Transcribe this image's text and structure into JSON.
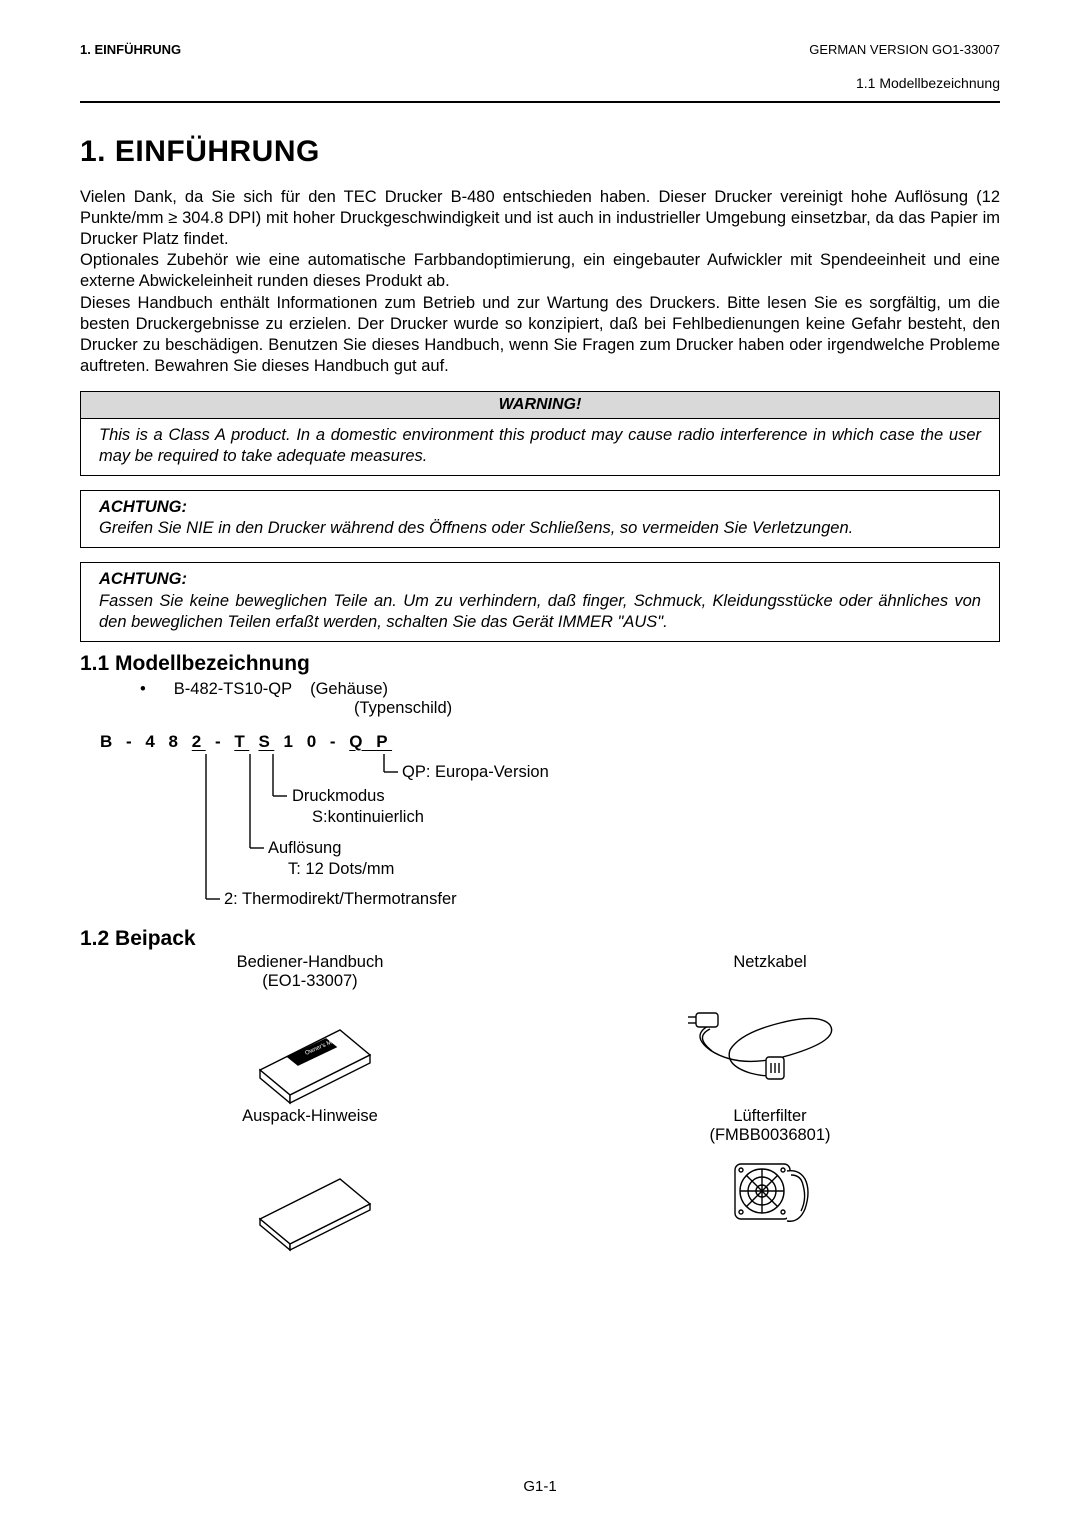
{
  "header": {
    "left": "1.   EINFÜHRUNG",
    "right": "GERMAN VERSION GO1-33007",
    "sub": "1.1 Modellbezeichnung"
  },
  "title": "1. EINFÜHRUNG",
  "intro": "Vielen Dank, da  Sie sich für den TEC Drucker B-480 entschieden haben.  Dieser Drucker vereinigt hohe Auflösung (12 Punkte/mm ≥ 304.8 DPI) mit hoher Druckgeschwindigkeit und ist auch in industrieller Umgebung einsetzbar, da das Papier im Drucker Platz findet.\nOptionales Zubehör wie eine automatische Farbbandoptimierung, ein eingebauter Aufwickler mit Spendeeinheit und eine externe Abwickeleinheit runden dieses Produkt ab.\nDieses Handbuch enthält Informationen zum Betrieb und zur Wartung des Druckers.  Bitte lesen Sie es sorgfältig, um die besten Druckergebnisse zu erzielen.  Der Drucker wurde so konzipiert, daß bei Fehlbedienungen keine Gefahr besteht, den Drucker zu beschädigen.  Benutzen Sie dieses Handbuch, wenn Sie Fragen zum Drucker haben oder irgendwelche Probleme auftreten.  Bewahren Sie dieses Handbuch gut auf.",
  "warning": {
    "title": "WARNING!",
    "body": "This is a Class A product.   In a domestic environment this product may cause radio interference in which case the user may be required to take adequate measures."
  },
  "achtung1": {
    "title": "ACHTUNG:",
    "body": "Greifen Sie NIE in den Drucker während des Öffnens oder Schließens, so vermeiden Sie Verletzungen."
  },
  "achtung2": {
    "title": "ACHTUNG:",
    "body": "Fassen Sie keine beweglichen Teile an.  Um zu verhindern, daß finger, Schmuck, Kleidungsstücke oder ähnliches von den beweglichen Teilen erfaßt werden, schalten Sie das Gerät IMMER \"AUS\"."
  },
  "section11": {
    "heading": "1.1  Modellbezeichnung",
    "bullet_model": "B-482-TS10-QP",
    "bullet_note1": "(Gehäuse)",
    "bullet_note2": "(Typenschild)",
    "code_parts": [
      "B",
      " - ",
      "4",
      " ",
      "8",
      " ",
      "2",
      " - ",
      "T",
      " ",
      "S",
      " ",
      "1",
      " ",
      "0",
      " - ",
      "Q",
      " ",
      "P"
    ],
    "labels": {
      "qp": "QP: Europa-Version",
      "druck": "Druckmodus",
      "druck2": "S:kontinuierlich",
      "aufl": "Auflösung",
      "aufl2": "T: 12 Dots/mm",
      "thermo": "2: Thermodirekt/Thermotransfer"
    }
  },
  "section12": {
    "heading": "1.2  Beipack",
    "items": [
      {
        "title": "Bediener-Handbuch",
        "sub": "(EO1-33007)"
      },
      {
        "title": "Netzkabel",
        "sub": ""
      },
      {
        "title": "Auspack-Hinweise",
        "sub": ""
      },
      {
        "title": "Lüfterfilter",
        "sub": "(FMBB0036801)"
      }
    ],
    "manual_label": "Owner's Manual"
  },
  "footer": "G1-1",
  "colors": {
    "text": "#000000",
    "bg": "#ffffff",
    "bar": "#d9d9d9"
  }
}
